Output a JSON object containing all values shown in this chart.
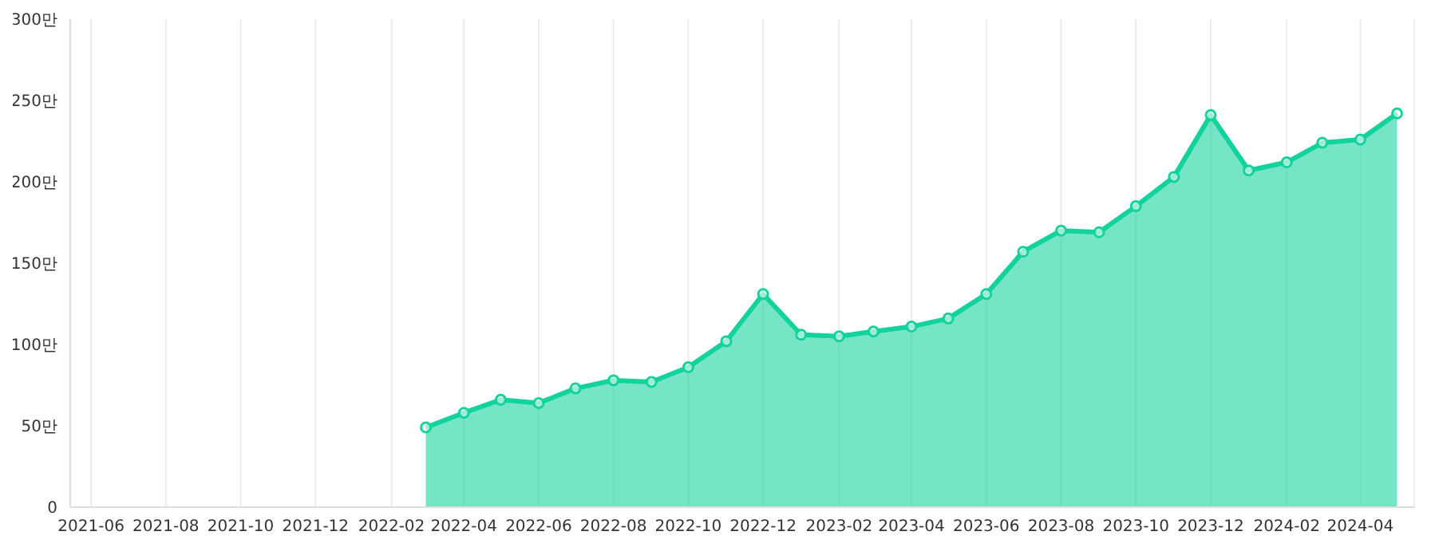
{
  "chart_data": {
    "type": "area",
    "x": [
      "2022-03",
      "2022-04",
      "2022-05",
      "2022-06",
      "2022-07",
      "2022-08",
      "2022-09",
      "2022-10",
      "2022-11",
      "2022-12",
      "2023-01",
      "2023-02",
      "2023-03",
      "2023-04",
      "2023-05",
      "2023-06",
      "2023-07",
      "2023-08",
      "2023-09",
      "2023-10",
      "2023-11",
      "2023-12",
      "2024-01",
      "2024-02",
      "2024-03",
      "2024-04",
      "2024-05"
    ],
    "series": [
      {
        "color": "#12d39b",
        "values": [
          49,
          58,
          66,
          64,
          73,
          78,
          77,
          86,
          102,
          131,
          106,
          105,
          108,
          111,
          116,
          131,
          157,
          170,
          169,
          185,
          203,
          241,
          207,
          212,
          224,
          226,
          242
        ]
      }
    ],
    "xlim": [
      "2021-05-15",
      "2024-05-15"
    ],
    "xticks": [
      {
        "value": "2021-06",
        "label": "2021-06"
      },
      {
        "value": "2021-08",
        "label": "2021-08"
      },
      {
        "value": "2021-10",
        "label": "2021-10"
      },
      {
        "value": "2021-12",
        "label": "2021-12"
      },
      {
        "value": "2022-02",
        "label": "2022-02"
      },
      {
        "value": "2022-04",
        "label": "2022-04"
      },
      {
        "value": "2022-06",
        "label": "2022-06"
      },
      {
        "value": "2022-08",
        "label": "2022-08"
      },
      {
        "value": "2022-10",
        "label": "2022-10"
      },
      {
        "value": "2022-12",
        "label": "2022-12"
      },
      {
        "value": "2023-02",
        "label": "2023-02"
      },
      {
        "value": "2023-04",
        "label": "2023-04"
      },
      {
        "value": "2023-06",
        "label": "2023-06"
      },
      {
        "value": "2023-08",
        "label": "2023-08"
      },
      {
        "value": "2023-10",
        "label": "2023-10"
      },
      {
        "value": "2023-12",
        "label": "2023-12"
      },
      {
        "value": "2024-02",
        "label": "2024-02"
      },
      {
        "value": "2024-04",
        "label": "2024-04"
      }
    ],
    "ylim": [
      0,
      300
    ],
    "yticks": [
      0,
      {
        "value": 50,
        "label": "50만"
      },
      {
        "value": 100,
        "label": "100만"
      },
      {
        "value": 150,
        "label": "150만"
      },
      {
        "value": 200,
        "label": "200만"
      },
      {
        "value": 250,
        "label": "250만"
      },
      {
        "value": 300,
        "label": "300만"
      }
    ],
    "grid": "x",
    "marker": "circle",
    "line_style": "solid",
    "legend": false
  }
}
